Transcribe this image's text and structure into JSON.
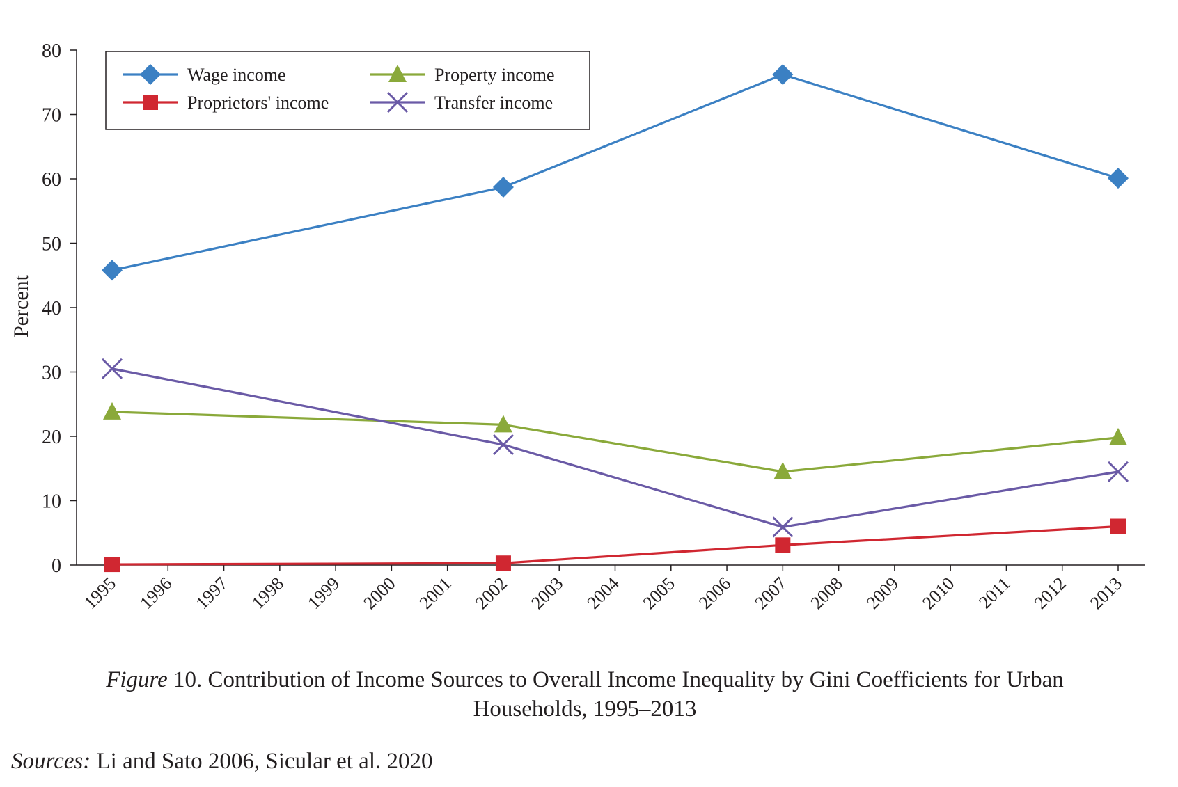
{
  "chart_data": {
    "type": "line",
    "categories": [
      "1995",
      "1996",
      "1997",
      "1998",
      "1999",
      "2000",
      "2001",
      "2002",
      "2003",
      "2004",
      "2005",
      "2006",
      "2007",
      "2008",
      "2009",
      "2010",
      "2011",
      "2012",
      "2013"
    ],
    "ylabel": "Percent",
    "ylim": [
      0,
      80
    ],
    "yticks": [
      0,
      10,
      20,
      30,
      40,
      50,
      60,
      70,
      80
    ],
    "grid": false,
    "legend_position": "top-left",
    "series": [
      {
        "name": "Wage income",
        "color": "#3b80c3",
        "marker": "diamond",
        "points": [
          {
            "x": "1995",
            "y": 45.8
          },
          {
            "x": "2002",
            "y": 58.7
          },
          {
            "x": "2007",
            "y": 76.2
          },
          {
            "x": "2013",
            "y": 60.1
          }
        ]
      },
      {
        "name": "Proprietors' income",
        "color": "#d02731",
        "marker": "square",
        "points": [
          {
            "x": "1995",
            "y": 0.1
          },
          {
            "x": "2002",
            "y": 0.3
          },
          {
            "x": "2007",
            "y": 3.1
          },
          {
            "x": "2013",
            "y": 6.0
          }
        ]
      },
      {
        "name": "Property income",
        "color": "#8aa93a",
        "marker": "triangle",
        "points": [
          {
            "x": "1995",
            "y": 23.8
          },
          {
            "x": "2002",
            "y": 21.8
          },
          {
            "x": "2007",
            "y": 14.5
          },
          {
            "x": "2013",
            "y": 19.8
          }
        ]
      },
      {
        "name": "Transfer income",
        "color": "#6a5aa6",
        "marker": "x",
        "points": [
          {
            "x": "1995",
            "y": 30.5
          },
          {
            "x": "2002",
            "y": 18.7
          },
          {
            "x": "2007",
            "y": 5.9
          },
          {
            "x": "2013",
            "y": 14.5
          }
        ]
      }
    ]
  },
  "caption": {
    "figure_label": "Figure",
    "line1_text": " 10. Contribution of Income Sources to Overall Income Inequality by Gini Coefficients for Urban",
    "line2_text": "Households, 1995–2013"
  },
  "sources": {
    "label": "Sources:",
    "text": " Li and Sato 2006, Sicular et al. 2020"
  }
}
